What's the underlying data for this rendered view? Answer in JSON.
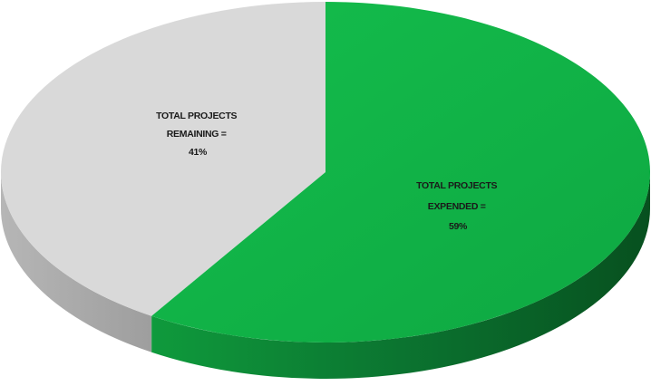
{
  "chart_data": {
    "type": "pie",
    "style": "3d",
    "legend": "none",
    "slices": [
      {
        "label_lines": [
          "TOTAL PROJECTS",
          "EXPENDED =",
          "59%"
        ],
        "value": 59,
        "color": "#11b447",
        "side_color": "#0d7a33"
      },
      {
        "label_lines": [
          "TOTAL PROJECTS",
          "REMAINING =",
          "41%"
        ],
        "value": 41,
        "color": "#d9d9d9",
        "side_color": "#b0b0b0"
      }
    ]
  }
}
